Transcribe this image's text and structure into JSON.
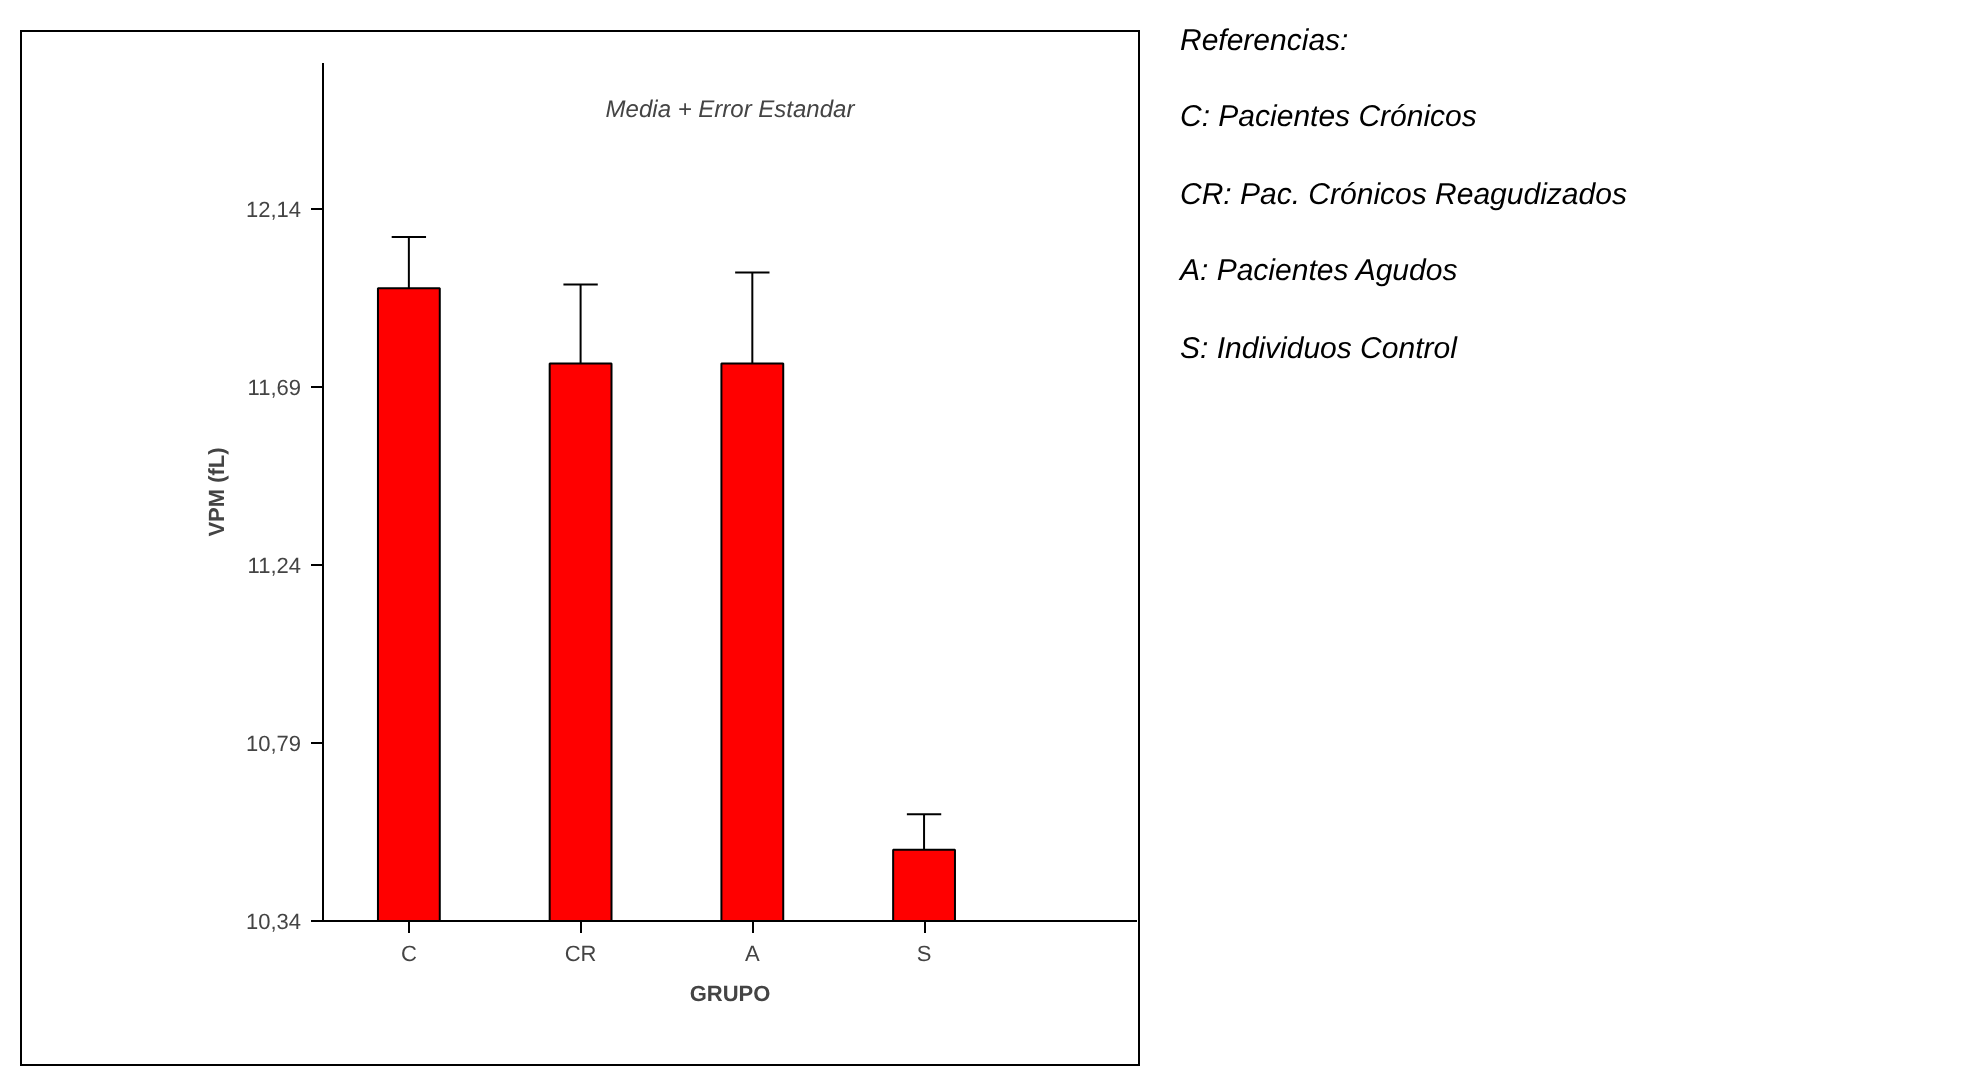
{
  "chart_data": {
    "type": "bar",
    "title": "Media + Error Estandar",
    "xlabel": "GRUPO",
    "ylabel": "VPM (fL)",
    "categories": [
      "C",
      "CR",
      "A",
      "S"
    ],
    "values": [
      11.94,
      11.75,
      11.75,
      10.52
    ],
    "color": "#ff0000",
    "errors": [
      [
        11.94,
        12.07
      ],
      [
        11.75,
        11.95
      ],
      [
        11.75,
        11.98
      ],
      [
        10.52,
        10.61
      ]
    ],
    "ylim": [
      10.34,
      12.51
    ],
    "yticks": [
      {
        "value": 10.34,
        "label": "10,34"
      },
      {
        "value": 10.79,
        "label": "10,79"
      },
      {
        "value": 11.24,
        "label": "11,24"
      },
      {
        "value": 11.69,
        "label": "11,69"
      },
      {
        "value": 12.14,
        "label": "12,14"
      }
    ],
    "grid": false,
    "annotations": [
      "Referencias:",
      "C: Pacientes Crónicos",
      "CR: Pac. Crónicos Reagudizados",
      "A: Pacientes Agudos",
      "S: Individuos Control"
    ]
  }
}
